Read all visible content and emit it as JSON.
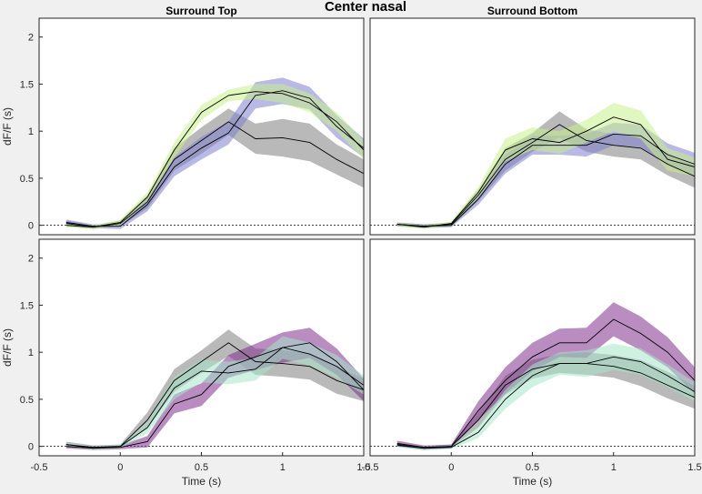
{
  "figure": {
    "title": "Center nasal",
    "background": "#f0f0f0",
    "colors": {
      "gray": "#808080",
      "blue": "#7f7fd0",
      "green": "#c8f08c",
      "purple": "#7f2f8c",
      "mint": "#a6e6c8",
      "line": "#000000"
    }
  },
  "chart_data": [
    {
      "type": "line",
      "panel": "top-left",
      "subtitle": "Surround Top",
      "xlabel": "",
      "ylabel": "dF/F (s)",
      "xlim": [
        -0.5,
        1.5
      ],
      "ylim": [
        -0.1,
        2.2
      ],
      "yticks": [
        "0",
        "0.5",
        "1",
        "1.5",
        "2"
      ],
      "xticks": [],
      "grid": false,
      "x": [
        -0.333,
        -0.167,
        0,
        0.167,
        0.333,
        0.5,
        0.667,
        0.833,
        1.0,
        1.167,
        1.333,
        1.5
      ],
      "series": [
        {
          "color": "#808080",
          "mean": [
            0.02,
            -0.02,
            0.02,
            0.25,
            0.7,
            0.9,
            1.1,
            0.92,
            0.93,
            0.88,
            0.7,
            0.55
          ],
          "sem": [
            0.03,
            0.02,
            0.03,
            0.07,
            0.12,
            0.14,
            0.14,
            0.16,
            0.2,
            0.2,
            0.16,
            0.15
          ]
        },
        {
          "color": "#7f7fd0",
          "mean": [
            0.03,
            -0.01,
            -0.01,
            0.22,
            0.62,
            0.82,
            0.98,
            1.38,
            1.43,
            1.35,
            1.05,
            0.82
          ],
          "sem": [
            0.03,
            0.02,
            0.03,
            0.07,
            0.1,
            0.12,
            0.12,
            0.14,
            0.14,
            0.12,
            0.12,
            0.1
          ]
        },
        {
          "color": "#c8f08c",
          "mean": [
            0.0,
            -0.02,
            0.03,
            0.3,
            0.8,
            1.2,
            1.38,
            1.42,
            1.4,
            1.3,
            1.1,
            0.8
          ],
          "sem": [
            0.02,
            0.02,
            0.03,
            0.05,
            0.08,
            0.08,
            0.06,
            0.08,
            0.1,
            0.1,
            0.1,
            0.1
          ]
        }
      ]
    },
    {
      "type": "line",
      "panel": "top-right",
      "subtitle": "Surround Bottom",
      "xlabel": "",
      "ylabel": "",
      "xlim": [
        -0.5,
        1.5
      ],
      "ylim": [
        -0.1,
        2.2
      ],
      "yticks": [],
      "xticks": [],
      "grid": false,
      "x": [
        -0.333,
        -0.167,
        0,
        0.167,
        0.333,
        0.5,
        0.667,
        0.833,
        1.0,
        1.167,
        1.333,
        1.5
      ],
      "series": [
        {
          "color": "#808080",
          "mean": [
            0.01,
            -0.01,
            0.01,
            0.32,
            0.7,
            0.88,
            1.07,
            0.9,
            0.85,
            0.82,
            0.65,
            0.52
          ],
          "sem": [
            0.02,
            0.02,
            0.02,
            0.06,
            0.12,
            0.1,
            0.14,
            0.12,
            0.12,
            0.12,
            0.12,
            0.12
          ]
        },
        {
          "color": "#7f7fd0",
          "mean": [
            0.01,
            -0.01,
            0.0,
            0.28,
            0.65,
            0.85,
            0.85,
            0.85,
            0.97,
            0.95,
            0.75,
            0.65
          ],
          "sem": [
            0.02,
            0.02,
            0.02,
            0.06,
            0.1,
            0.1,
            0.1,
            0.12,
            0.12,
            0.12,
            0.12,
            0.12
          ]
        },
        {
          "color": "#c8f08c",
          "mean": [
            0.01,
            -0.02,
            0.02,
            0.35,
            0.8,
            0.92,
            0.88,
            1.0,
            1.15,
            1.07,
            0.7,
            0.62
          ],
          "sem": [
            0.02,
            0.02,
            0.02,
            0.06,
            0.12,
            0.12,
            0.12,
            0.12,
            0.15,
            0.15,
            0.12,
            0.1
          ]
        }
      ]
    },
    {
      "type": "line",
      "panel": "bottom-left",
      "subtitle": "",
      "xlabel": "Time (s)",
      "ylabel": "dF/F (s)",
      "xlim": [
        -0.5,
        1.5
      ],
      "ylim": [
        -0.1,
        2.2
      ],
      "yticks": [
        "0",
        "0.5",
        "1",
        "1.5",
        "2"
      ],
      "xticks": [
        "-0.5",
        "0",
        "0.5",
        "1",
        "1.5"
      ],
      "grid": false,
      "x": [
        -0.333,
        -0.167,
        0,
        0.167,
        0.333,
        0.5,
        0.667,
        0.833,
        1.0,
        1.167,
        1.333,
        1.5
      ],
      "series": [
        {
          "color": "#808080",
          "mean": [
            0.02,
            -0.01,
            0.0,
            0.28,
            0.7,
            0.9,
            1.1,
            0.9,
            0.88,
            0.85,
            0.7,
            0.6
          ],
          "sem": [
            0.03,
            0.02,
            0.02,
            0.08,
            0.12,
            0.12,
            0.14,
            0.14,
            0.14,
            0.14,
            0.14,
            0.12
          ]
        },
        {
          "color": "#7f2f8c",
          "mean": [
            0.0,
            -0.02,
            -0.01,
            0.05,
            0.45,
            0.55,
            0.85,
            0.95,
            1.05,
            1.1,
            0.9,
            0.6
          ],
          "sem": [
            0.02,
            0.02,
            0.02,
            0.06,
            0.1,
            0.12,
            0.12,
            0.14,
            0.16,
            0.16,
            0.14,
            0.12
          ]
        },
        {
          "color": "#a6e6c8",
          "mean": [
            0.02,
            -0.02,
            0.0,
            0.2,
            0.62,
            0.8,
            0.78,
            0.82,
            1.05,
            0.98,
            0.85,
            0.65
          ],
          "sem": [
            0.02,
            0.02,
            0.02,
            0.06,
            0.12,
            0.12,
            0.12,
            0.12,
            0.12,
            0.12,
            0.12,
            0.1
          ]
        }
      ]
    },
    {
      "type": "line",
      "panel": "bottom-right",
      "subtitle": "",
      "xlabel": "Time (s)",
      "ylabel": "",
      "xlim": [
        -0.5,
        1.5
      ],
      "ylim": [
        -0.1,
        2.2
      ],
      "yticks": [],
      "xticks": [
        "-0.5",
        "0",
        "0.5",
        "1",
        "1.5"
      ],
      "grid": false,
      "x": [
        -0.333,
        -0.167,
        0,
        0.167,
        0.333,
        0.5,
        0.667,
        0.833,
        1.0,
        1.167,
        1.333,
        1.5
      ],
      "series": [
        {
          "color": "#808080",
          "mean": [
            0.02,
            -0.02,
            0.0,
            0.28,
            0.65,
            0.82,
            0.88,
            0.88,
            0.85,
            0.78,
            0.65,
            0.52
          ],
          "sem": [
            0.02,
            0.02,
            0.02,
            0.08,
            0.1,
            0.1,
            0.1,
            0.12,
            0.12,
            0.14,
            0.14,
            0.12
          ]
        },
        {
          "color": "#7f2f8c",
          "mean": [
            0.03,
            -0.01,
            0.0,
            0.38,
            0.7,
            0.95,
            1.1,
            1.1,
            1.35,
            1.2,
            1.0,
            0.7
          ],
          "sem": [
            0.03,
            0.02,
            0.02,
            0.1,
            0.14,
            0.15,
            0.15,
            0.16,
            0.18,
            0.18,
            0.16,
            0.14
          ]
        },
        {
          "color": "#a6e6c8",
          "mean": [
            0.01,
            -0.02,
            -0.01,
            0.15,
            0.5,
            0.75,
            0.88,
            0.88,
            0.95,
            0.9,
            0.75,
            0.58
          ],
          "sem": [
            0.02,
            0.02,
            0.02,
            0.06,
            0.1,
            0.12,
            0.12,
            0.14,
            0.14,
            0.14,
            0.12,
            0.1
          ]
        }
      ]
    }
  ]
}
